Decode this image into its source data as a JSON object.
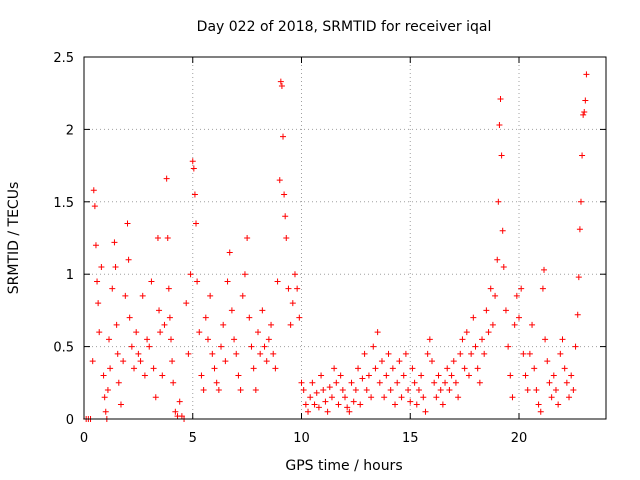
{
  "chart_data": {
    "type": "scatter",
    "title": "Day 022 of 2018, SRMTID for receiver iqal",
    "xlabel": "GPS time / hours",
    "ylabel": "SRMTID / TECUs",
    "xlim": [
      0,
      24
    ],
    "ylim": [
      0,
      2.5
    ],
    "xticks": [
      0,
      5,
      10,
      15,
      20
    ],
    "xtick_labels": [
      "0",
      "5",
      "10",
      "15",
      "20"
    ],
    "yticks": [
      0,
      0.5,
      1,
      1.5,
      2,
      2.5
    ],
    "ytick_labels": [
      "0",
      "0.5",
      "1",
      "1.5",
      "2",
      "2.5"
    ],
    "grid": true,
    "marker": "+",
    "color": "#ff0000",
    "series": [
      {
        "name": "iqal",
        "points": [
          [
            0.1,
            0
          ],
          [
            0.2,
            0
          ],
          [
            0.3,
            0
          ],
          [
            0.4,
            0.4
          ],
          [
            0.45,
            1.58
          ],
          [
            0.5,
            1.47
          ],
          [
            0.55,
            1.2
          ],
          [
            0.6,
            0.95
          ],
          [
            0.65,
            0.8
          ],
          [
            0.7,
            0.6
          ],
          [
            0.8,
            1.05
          ],
          [
            0.9,
            0.3
          ],
          [
            0.95,
            0.15
          ],
          [
            1.0,
            0.05
          ],
          [
            1.05,
            0
          ],
          [
            1.1,
            0.2
          ],
          [
            1.15,
            0.55
          ],
          [
            1.2,
            0.35
          ],
          [
            1.3,
            0.9
          ],
          [
            1.4,
            1.22
          ],
          [
            1.45,
            1.05
          ],
          [
            1.5,
            0.65
          ],
          [
            1.55,
            0.45
          ],
          [
            1.6,
            0.25
          ],
          [
            1.7,
            0.1
          ],
          [
            1.8,
            0.4
          ],
          [
            1.9,
            0.85
          ],
          [
            2.0,
            1.35
          ],
          [
            2.05,
            1.1
          ],
          [
            2.1,
            0.7
          ],
          [
            2.2,
            0.5
          ],
          [
            2.3,
            0.35
          ],
          [
            2.4,
            0.6
          ],
          [
            2.5,
            0.45
          ],
          [
            2.6,
            0.4
          ],
          [
            2.7,
            0.85
          ],
          [
            2.8,
            0.3
          ],
          [
            2.9,
            0.55
          ],
          [
            3.0,
            0.5
          ],
          [
            3.1,
            0.95
          ],
          [
            3.2,
            0.35
          ],
          [
            3.3,
            0.15
          ],
          [
            3.4,
            1.25
          ],
          [
            3.45,
            0.75
          ],
          [
            3.5,
            0.6
          ],
          [
            3.6,
            0.3
          ],
          [
            3.7,
            0.65
          ],
          [
            3.8,
            1.66
          ],
          [
            3.85,
            1.25
          ],
          [
            3.9,
            0.9
          ],
          [
            3.95,
            0.7
          ],
          [
            4.0,
            0.55
          ],
          [
            4.05,
            0.4
          ],
          [
            4.1,
            0.25
          ],
          [
            4.2,
            0.05
          ],
          [
            4.3,
            0.02
          ],
          [
            4.4,
            0.12
          ],
          [
            4.5,
            0.02
          ],
          [
            4.6,
            0
          ],
          [
            4.7,
            0.8
          ],
          [
            4.8,
            0.45
          ],
          [
            4.9,
            1.0
          ],
          [
            5.0,
            1.78
          ],
          [
            5.05,
            1.73
          ],
          [
            5.1,
            1.55
          ],
          [
            5.15,
            1.35
          ],
          [
            5.2,
            0.95
          ],
          [
            5.3,
            0.6
          ],
          [
            5.4,
            0.3
          ],
          [
            5.5,
            0.2
          ],
          [
            5.6,
            0.7
          ],
          [
            5.7,
            0.55
          ],
          [
            5.8,
            0.85
          ],
          [
            5.9,
            0.45
          ],
          [
            6.0,
            0.35
          ],
          [
            6.1,
            0.25
          ],
          [
            6.2,
            0.2
          ],
          [
            6.3,
            0.5
          ],
          [
            6.4,
            0.65
          ],
          [
            6.5,
            0.4
          ],
          [
            6.6,
            0.95
          ],
          [
            6.7,
            1.15
          ],
          [
            6.8,
            0.75
          ],
          [
            6.9,
            0.55
          ],
          [
            7.0,
            0.45
          ],
          [
            7.1,
            0.3
          ],
          [
            7.2,
            0.2
          ],
          [
            7.3,
            0.85
          ],
          [
            7.4,
            1.0
          ],
          [
            7.5,
            1.25
          ],
          [
            7.6,
            0.7
          ],
          [
            7.7,
            0.5
          ],
          [
            7.8,
            0.35
          ],
          [
            7.9,
            0.2
          ],
          [
            8.0,
            0.6
          ],
          [
            8.1,
            0.45
          ],
          [
            8.2,
            0.75
          ],
          [
            8.3,
            0.5
          ],
          [
            8.4,
            0.4
          ],
          [
            8.5,
            0.55
          ],
          [
            8.6,
            0.65
          ],
          [
            8.7,
            0.45
          ],
          [
            8.8,
            0.35
          ],
          [
            8.9,
            0.95
          ],
          [
            9.0,
            1.65
          ],
          [
            9.05,
            2.33
          ],
          [
            9.1,
            2.3
          ],
          [
            9.15,
            1.95
          ],
          [
            9.2,
            1.55
          ],
          [
            9.25,
            1.4
          ],
          [
            9.3,
            1.25
          ],
          [
            9.4,
            0.9
          ],
          [
            9.5,
            0.65
          ],
          [
            9.6,
            0.8
          ],
          [
            9.7,
            1.0
          ],
          [
            9.8,
            0.9
          ],
          [
            9.9,
            0.7
          ],
          [
            10.0,
            0.25
          ],
          [
            10.1,
            0.2
          ],
          [
            10.2,
            0.1
          ],
          [
            10.3,
            0.05
          ],
          [
            10.4,
            0.15
          ],
          [
            10.5,
            0.25
          ],
          [
            10.6,
            0.1
          ],
          [
            10.7,
            0.18
          ],
          [
            10.8,
            0.08
          ],
          [
            10.9,
            0.3
          ],
          [
            11.0,
            0.2
          ],
          [
            11.1,
            0.12
          ],
          [
            11.2,
            0.05
          ],
          [
            11.3,
            0.22
          ],
          [
            11.4,
            0.15
          ],
          [
            11.5,
            0.35
          ],
          [
            11.6,
            0.25
          ],
          [
            11.7,
            0.1
          ],
          [
            11.8,
            0.3
          ],
          [
            11.9,
            0.2
          ],
          [
            12.0,
            0.15
          ],
          [
            12.1,
            0.08
          ],
          [
            12.2,
            0.05
          ],
          [
            12.3,
            0.25
          ],
          [
            12.4,
            0.12
          ],
          [
            12.5,
            0.2
          ],
          [
            12.6,
            0.35
          ],
          [
            12.7,
            0.1
          ],
          [
            12.8,
            0.28
          ],
          [
            12.9,
            0.45
          ],
          [
            13.0,
            0.2
          ],
          [
            13.1,
            0.3
          ],
          [
            13.2,
            0.15
          ],
          [
            13.3,
            0.5
          ],
          [
            13.4,
            0.35
          ],
          [
            13.5,
            0.6
          ],
          [
            13.6,
            0.25
          ],
          [
            13.7,
            0.4
          ],
          [
            13.8,
            0.15
          ],
          [
            13.9,
            0.3
          ],
          [
            14.0,
            0.45
          ],
          [
            14.1,
            0.2
          ],
          [
            14.2,
            0.35
          ],
          [
            14.3,
            0.1
          ],
          [
            14.4,
            0.25
          ],
          [
            14.5,
            0.4
          ],
          [
            14.6,
            0.15
          ],
          [
            14.7,
            0.3
          ],
          [
            14.8,
            0.45
          ],
          [
            14.9,
            0.2
          ],
          [
            15.0,
            0.12
          ],
          [
            15.1,
            0.35
          ],
          [
            15.2,
            0.25
          ],
          [
            15.3,
            0.1
          ],
          [
            15.4,
            0.2
          ],
          [
            15.5,
            0.3
          ],
          [
            15.6,
            0.15
          ],
          [
            15.7,
            0.05
          ],
          [
            15.8,
            0.45
          ],
          [
            15.9,
            0.55
          ],
          [
            16.0,
            0.4
          ],
          [
            16.1,
            0.25
          ],
          [
            16.2,
            0.15
          ],
          [
            16.3,
            0.3
          ],
          [
            16.4,
            0.2
          ],
          [
            16.5,
            0.1
          ],
          [
            16.6,
            0.25
          ],
          [
            16.7,
            0.35
          ],
          [
            16.8,
            0.2
          ],
          [
            16.9,
            0.3
          ],
          [
            17.0,
            0.4
          ],
          [
            17.1,
            0.25
          ],
          [
            17.2,
            0.15
          ],
          [
            17.3,
            0.45
          ],
          [
            17.4,
            0.55
          ],
          [
            17.5,
            0.35
          ],
          [
            17.6,
            0.6
          ],
          [
            17.7,
            0.3
          ],
          [
            17.8,
            0.45
          ],
          [
            17.9,
            0.7
          ],
          [
            18.0,
            0.5
          ],
          [
            18.1,
            0.35
          ],
          [
            18.2,
            0.25
          ],
          [
            18.3,
            0.55
          ],
          [
            18.4,
            0.45
          ],
          [
            18.5,
            0.75
          ],
          [
            18.6,
            0.6
          ],
          [
            18.7,
            0.9
          ],
          [
            18.8,
            0.65
          ],
          [
            18.9,
            0.85
          ],
          [
            19.0,
            1.1
          ],
          [
            19.05,
            1.5
          ],
          [
            19.1,
            2.03
          ],
          [
            19.15,
            2.21
          ],
          [
            19.2,
            1.82
          ],
          [
            19.25,
            1.3
          ],
          [
            19.3,
            1.05
          ],
          [
            19.4,
            0.75
          ],
          [
            19.5,
            0.5
          ],
          [
            19.6,
            0.3
          ],
          [
            19.7,
            0.15
          ],
          [
            19.8,
            0.65
          ],
          [
            19.9,
            0.85
          ],
          [
            20.0,
            0.7
          ],
          [
            20.1,
            0.9
          ],
          [
            20.2,
            0.45
          ],
          [
            20.3,
            0.3
          ],
          [
            20.4,
            0.2
          ],
          [
            20.5,
            0.45
          ],
          [
            20.6,
            0.65
          ],
          [
            20.7,
            0.35
          ],
          [
            20.8,
            0.2
          ],
          [
            20.9,
            0.1
          ],
          [
            21.0,
            0.05
          ],
          [
            21.1,
            0.9
          ],
          [
            21.15,
            1.03
          ],
          [
            21.2,
            0.55
          ],
          [
            21.3,
            0.4
          ],
          [
            21.4,
            0.25
          ],
          [
            21.5,
            0.15
          ],
          [
            21.6,
            0.3
          ],
          [
            21.7,
            0.2
          ],
          [
            21.8,
            0.1
          ],
          [
            21.9,
            0.45
          ],
          [
            22.0,
            0.55
          ],
          [
            22.1,
            0.35
          ],
          [
            22.2,
            0.25
          ],
          [
            22.3,
            0.15
          ],
          [
            22.4,
            0.3
          ],
          [
            22.5,
            0.2
          ],
          [
            22.6,
            0.5
          ],
          [
            22.7,
            0.72
          ],
          [
            22.75,
            0.98
          ],
          [
            22.8,
            1.31
          ],
          [
            22.85,
            1.5
          ],
          [
            22.9,
            1.82
          ],
          [
            22.95,
            2.1
          ],
          [
            23.0,
            2.12
          ],
          [
            23.05,
            2.2
          ],
          [
            23.1,
            2.38
          ]
        ]
      }
    ]
  }
}
